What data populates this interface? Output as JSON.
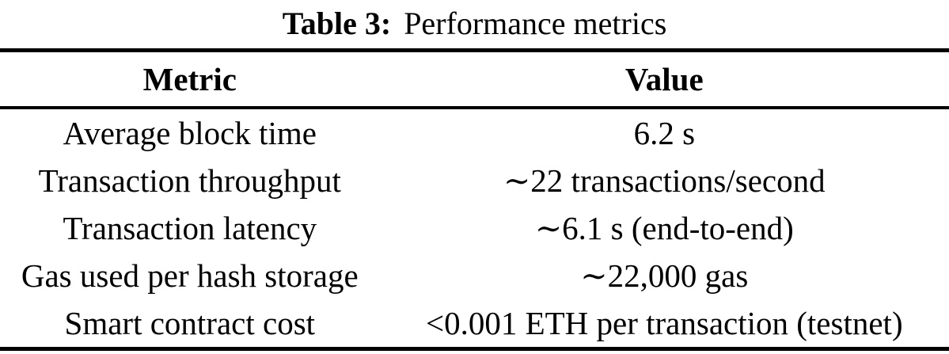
{
  "caption": {
    "label": "Table 3:",
    "title": "Performance metrics"
  },
  "table": {
    "headers": {
      "metric": "Metric",
      "value": "Value"
    },
    "rows": [
      {
        "metric": "Average block time",
        "value": "6.2 s"
      },
      {
        "metric": "Transaction throughput",
        "value": "∼22 transactions/second"
      },
      {
        "metric": "Transaction latency",
        "value": "∼6.1 s (end-to-end)"
      },
      {
        "metric": "Gas used per hash storage",
        "value": "∼22,000 gas"
      },
      {
        "metric": "Smart contract cost",
        "value": "<0.001 ETH per transaction (testnet)"
      }
    ]
  },
  "colors": {
    "text": "#000000",
    "background": "#ffffff",
    "rule": "#000000"
  }
}
